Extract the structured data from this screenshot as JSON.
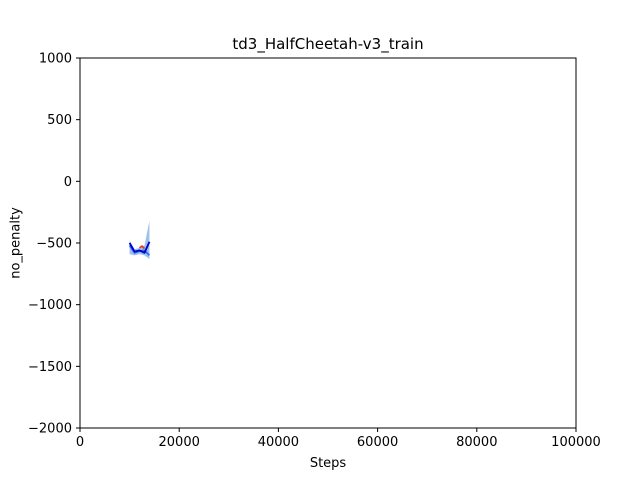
{
  "chart_data": {
    "type": "line",
    "title": "td3_HalfCheetah-v3_train",
    "xlabel": "Steps",
    "ylabel": "no_penalty",
    "xlim": [
      0,
      100000
    ],
    "ylim": [
      -2000,
      1000
    ],
    "xticks": [
      0,
      20000,
      40000,
      60000,
      80000,
      100000
    ],
    "yticks": [
      -2000,
      -1500,
      -1000,
      -500,
      0,
      500,
      1000
    ],
    "grid": false,
    "series": [
      {
        "style": "dark-blue-line",
        "color": "#0000cc",
        "x": [
          10000,
          11000,
          12000,
          13000,
          14000
        ],
        "y": [
          -500,
          -570,
          -560,
          -580,
          -490
        ],
        "band_color": "#4a90d9",
        "band_lower": [
          -590,
          -600,
          -590,
          -600,
          -630
        ],
        "band_upper": [
          -480,
          -550,
          -540,
          -520,
          -320
        ]
      },
      {
        "style": "blue-line",
        "color": "#3366ff",
        "x": [
          10000,
          11000,
          12000,
          13000,
          14000
        ],
        "y": [
          -520,
          -580,
          -565,
          -560,
          -600
        ]
      },
      {
        "style": "red-line",
        "color": "#e04020",
        "x": [
          12000,
          12500,
          13000
        ],
        "y": [
          -540,
          -525,
          -545
        ]
      }
    ]
  }
}
